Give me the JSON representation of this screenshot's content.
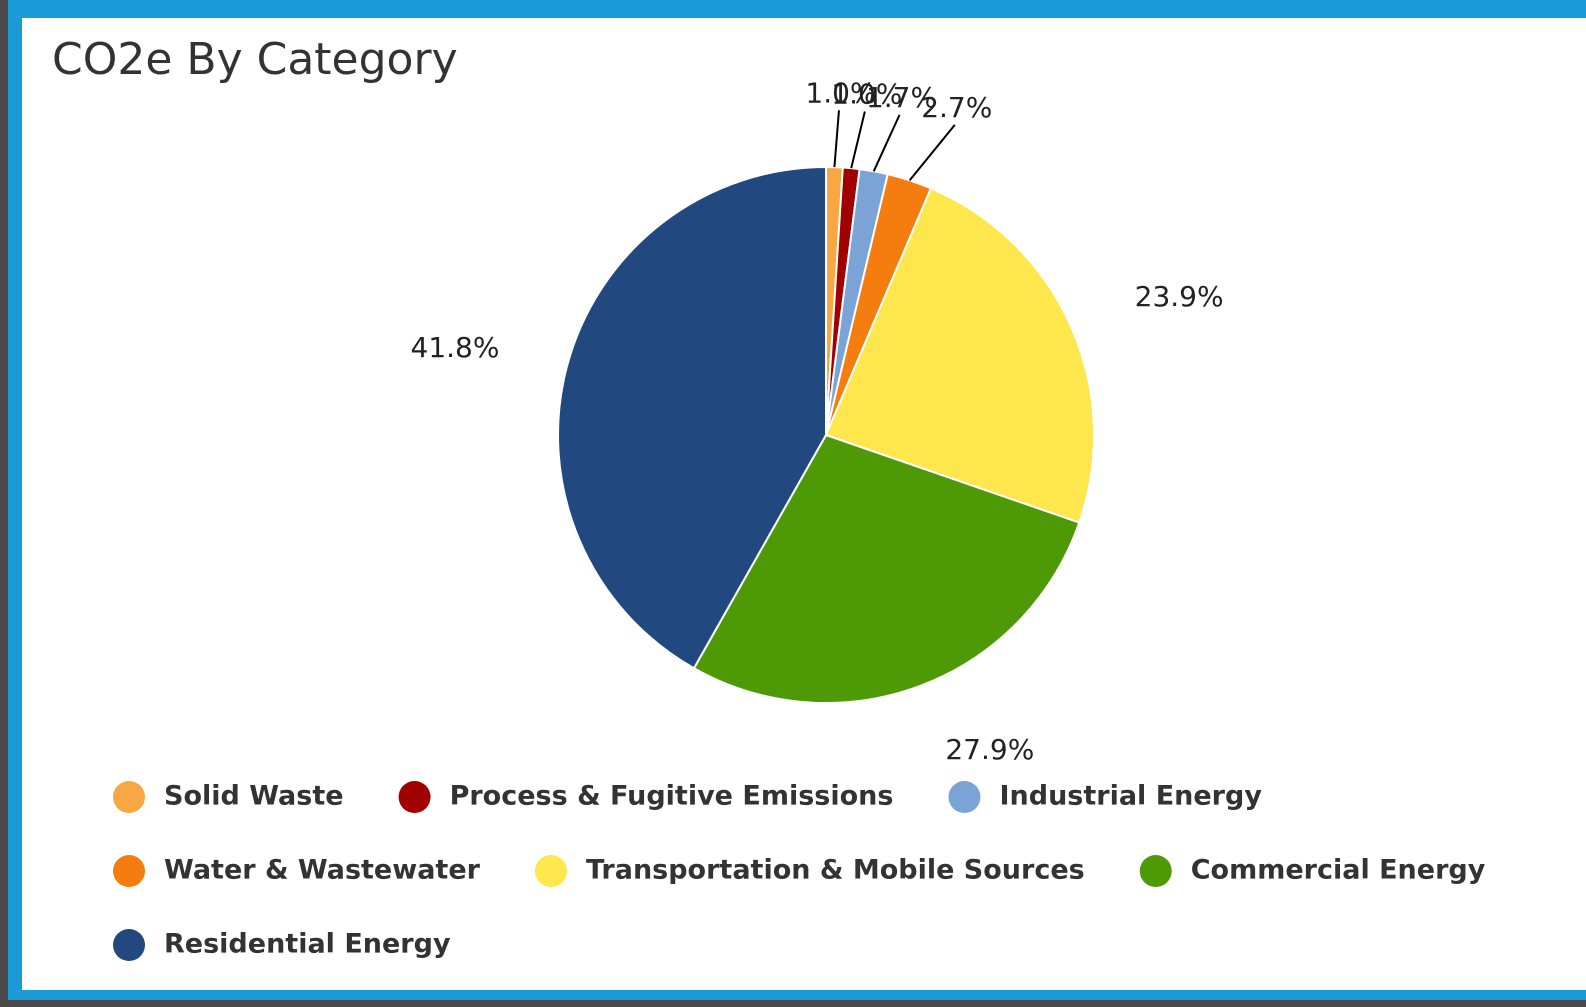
{
  "chart_data": {
    "type": "pie",
    "title": "CO2e By Category",
    "categories": [
      "Solid Waste",
      "Process & Fugitive Emissions",
      "Industrial Energy",
      "Water & Wastewater",
      "Transportation & Mobile Sources",
      "Commercial Energy",
      "Residential Energy"
    ],
    "values": [
      1.0,
      1.0,
      1.7,
      2.7,
      23.9,
      27.9,
      41.8
    ],
    "value_labels": [
      "1.0%",
      "1.0%",
      "1.7%",
      "2.7%",
      "23.9%",
      "27.9%",
      "41.8%"
    ],
    "colors": [
      "#f7a844",
      "#a00000",
      "#7ba3d6",
      "#f57c0f",
      "#fde74c",
      "#4e9a06",
      "#21497f"
    ],
    "legend": "bottom"
  }
}
